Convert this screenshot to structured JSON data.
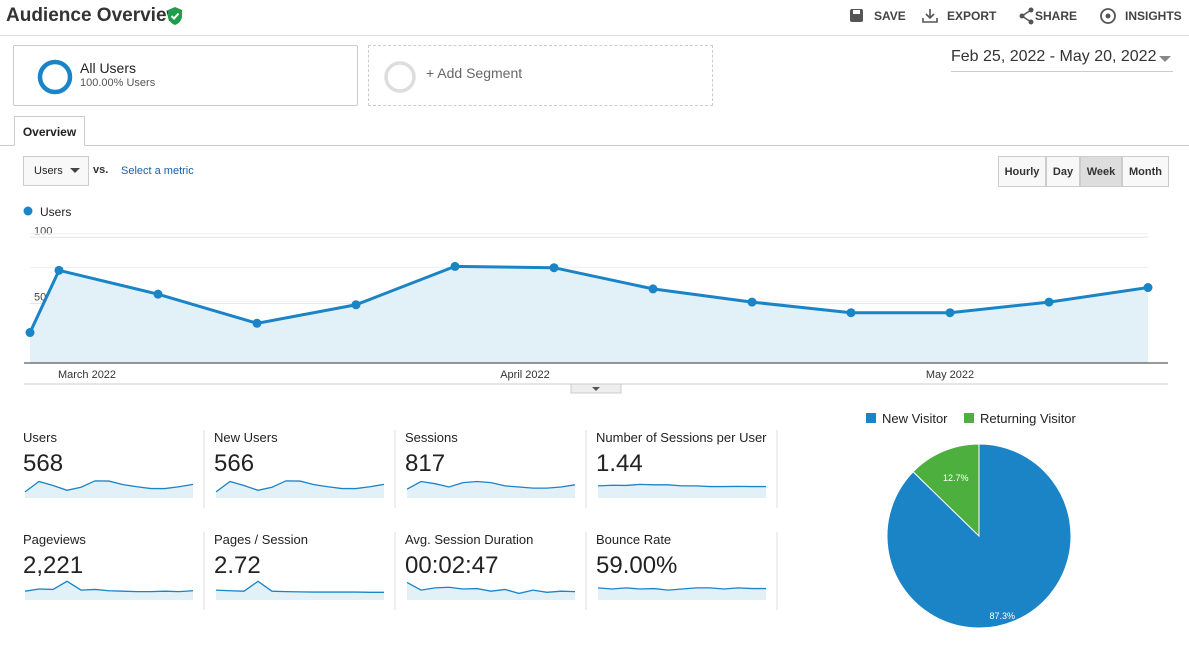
{
  "header": {
    "title": "Audience Overview",
    "actions": [
      "SAVE",
      "EXPORT",
      "SHARE",
      "INSIGHTS"
    ]
  },
  "segments": {
    "name": "All Users",
    "detail": "100.00% Users",
    "add": "+ Add Segment"
  },
  "date_range": "Feb 25, 2022 - May 20, 2022",
  "tab": "Overview",
  "controls": {
    "metric": "Users",
    "vs": "vs.",
    "select": "Select a metric",
    "periods": [
      "Hourly",
      "Day",
      "Week",
      "Month"
    ],
    "active_period": "Week"
  },
  "chart_data": [
    {
      "type": "line",
      "series": [
        {
          "name": "Users",
          "color": "#1a84c7",
          "values": [
            28,
            75,
            57,
            35,
            49,
            78,
            77,
            61,
            51,
            43,
            43,
            51,
            62
          ]
        }
      ],
      "x_labels": [
        "March 2022",
        "April 2022",
        "May 2022"
      ],
      "ylim": [
        5,
        107
      ],
      "yticks": [
        50,
        100
      ],
      "grid": true
    },
    {
      "type": "pie",
      "categories": [
        "New Visitor",
        "Returning Visitor"
      ],
      "values": [
        87.3,
        12.7
      ],
      "value_labels": [
        "87.3%",
        "12.7%"
      ],
      "colors": [
        "#1a84c7",
        "#4caf3e"
      ],
      "legend": "top"
    }
  ],
  "metrics": [
    {
      "label": "Users",
      "value": "568",
      "sparkline": [
        28,
        75,
        57,
        35,
        49,
        78,
        77,
        61,
        51,
        43,
        43,
        51,
        62
      ]
    },
    {
      "label": "New Users",
      "value": "566",
      "sparkline": [
        28,
        75,
        57,
        35,
        49,
        78,
        77,
        61,
        51,
        43,
        43,
        51,
        62
      ]
    },
    {
      "label": "Sessions",
      "value": "817",
      "sparkline": [
        40,
        75,
        65,
        50,
        70,
        75,
        70,
        55,
        50,
        45,
        45,
        50,
        60
      ]
    },
    {
      "label": "Number of Sessions per User",
      "value": "1.44",
      "sparkline": [
        55,
        58,
        57,
        62,
        60,
        60,
        55,
        55,
        52,
        52,
        53,
        52,
        52
      ]
    },
    {
      "label": "Pageviews",
      "value": "2,221",
      "sparkline": [
        40,
        50,
        48,
        85,
        45,
        48,
        42,
        40,
        38,
        38,
        40,
        38,
        42
      ]
    },
    {
      "label": "Pages / Session",
      "value": "2.72",
      "sparkline": [
        45,
        42,
        40,
        85,
        40,
        38,
        37,
        36,
        36,
        36,
        36,
        35,
        35
      ]
    },
    {
      "label": "Avg. Session Duration",
      "value": "00:02:47",
      "sparkline": [
        80,
        45,
        55,
        58,
        50,
        52,
        40,
        48,
        30,
        45,
        35,
        40,
        38
      ]
    },
    {
      "label": "Bounce Rate",
      "value": "59.00%",
      "sparkline": [
        55,
        50,
        55,
        50,
        52,
        45,
        50,
        55,
        55,
        50,
        55,
        52,
        52
      ]
    }
  ],
  "sparkline_ylim": [
    0,
    100
  ]
}
